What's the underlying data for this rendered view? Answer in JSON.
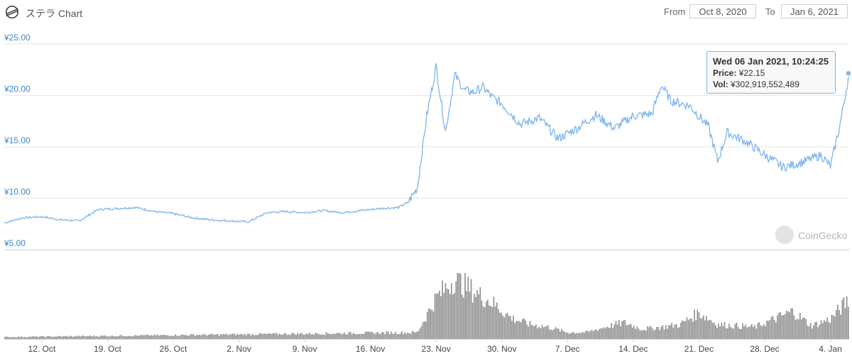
{
  "header": {
    "title": "ステラ Chart",
    "from_label": "From",
    "from_value": "Oct 8, 2020",
    "to_label": "To",
    "to_value": "Jan 6, 2021"
  },
  "tooltip": {
    "date": "Wed 06 Jan 2021, 10:24:25",
    "price_label": "Price:",
    "price_value": "¥22.15",
    "vol_label": "Vol:",
    "vol_value": "¥302,919,552,489"
  },
  "watermark": {
    "text": "CoinGecko"
  },
  "colors": {
    "price_line": "#7cb5ec",
    "axis_text": "#3a86c8",
    "volume_bars": "#8c8c8c",
    "grid": "#e6e6e6"
  },
  "chart_data": {
    "type": "line",
    "title": "ステラ Chart",
    "xlabel": "",
    "ylabel": "",
    "y_tick_labels": [
      "¥5.00",
      "¥10.00",
      "¥15.00",
      "¥20.00",
      "¥25.00"
    ],
    "y_ticks": [
      5,
      10,
      15,
      20,
      25
    ],
    "ylim": [
      5,
      25
    ],
    "x_tick_labels": [
      "12. Oct",
      "19. Oct",
      "26. Oct",
      "2. Nov",
      "9. Nov",
      "16. Nov",
      "23. Nov",
      "30. Nov",
      "7. Dec",
      "14. Dec",
      "21. Dec",
      "28. Dec",
      "4. Jan"
    ],
    "x_ticks": [
      "2020-10-12",
      "2020-10-19",
      "2020-10-26",
      "2020-11-02",
      "2020-11-09",
      "2020-11-16",
      "2020-11-23",
      "2020-11-30",
      "2020-12-07",
      "2020-12-14",
      "2020-12-21",
      "2020-12-28",
      "2021-01-04"
    ],
    "x_range": [
      "2020-10-08",
      "2021-01-06"
    ],
    "grid": true,
    "legend": "none",
    "series": [
      {
        "name": "Price",
        "x": [
          "2020-10-08",
          "2020-10-10",
          "2020-10-12",
          "2020-10-14",
          "2020-10-16",
          "2020-10-18",
          "2020-10-20",
          "2020-10-22",
          "2020-10-24",
          "2020-10-26",
          "2020-10-28",
          "2020-10-30",
          "2020-11-01",
          "2020-11-03",
          "2020-11-05",
          "2020-11-07",
          "2020-11-09",
          "2020-11-11",
          "2020-11-13",
          "2020-11-15",
          "2020-11-17",
          "2020-11-19",
          "2020-11-20",
          "2020-11-21",
          "2020-11-22",
          "2020-11-23",
          "2020-11-24",
          "2020-11-25",
          "2020-11-26",
          "2020-11-27",
          "2020-11-28",
          "2020-11-29",
          "2020-11-30",
          "2020-12-02",
          "2020-12-04",
          "2020-12-06",
          "2020-12-08",
          "2020-12-10",
          "2020-12-12",
          "2020-12-14",
          "2020-12-16",
          "2020-12-17",
          "2020-12-18",
          "2020-12-20",
          "2020-12-22",
          "2020-12-23",
          "2020-12-24",
          "2020-12-26",
          "2020-12-28",
          "2020-12-30",
          "2021-01-01",
          "2021-01-03",
          "2021-01-04",
          "2021-01-05",
          "2021-01-06"
        ],
        "values": [
          7.6,
          8.1,
          8.2,
          7.9,
          7.8,
          8.9,
          9.0,
          9.1,
          8.7,
          8.5,
          8.1,
          7.9,
          7.8,
          7.7,
          8.6,
          8.7,
          8.6,
          8.8,
          8.6,
          8.8,
          9.0,
          9.1,
          9.6,
          11.0,
          18.0,
          22.8,
          16.5,
          22.0,
          20.5,
          20.3,
          20.8,
          19.8,
          19.2,
          17.2,
          17.8,
          15.8,
          16.8,
          18.1,
          16.8,
          18.0,
          18.2,
          21.0,
          19.5,
          19.0,
          17.0,
          13.6,
          16.4,
          15.5,
          14.2,
          13.0,
          13.5,
          14.2,
          13.1,
          17.0,
          22.15
        ]
      },
      {
        "name": "Vol",
        "x": [
          "2020-10-08",
          "2020-11-21",
          "2020-11-23",
          "2020-11-25",
          "2020-11-27",
          "2020-11-29",
          "2020-12-01",
          "2020-12-03",
          "2020-12-05",
          "2020-12-07",
          "2020-12-09",
          "2020-12-11",
          "2020-12-13",
          "2020-12-15",
          "2020-12-17",
          "2020-12-19",
          "2020-12-21",
          "2020-12-23",
          "2020-12-25",
          "2020-12-27",
          "2020-12-29",
          "2020-12-31",
          "2021-01-02",
          "2021-01-04",
          "2021-01-06"
        ],
        "values": [
          0.03,
          0.1,
          0.62,
          0.92,
          0.72,
          0.55,
          0.32,
          0.22,
          0.18,
          0.1,
          0.1,
          0.18,
          0.25,
          0.15,
          0.18,
          0.22,
          0.4,
          0.22,
          0.2,
          0.18,
          0.3,
          0.42,
          0.2,
          0.3,
          0.6
        ]
      }
    ]
  }
}
